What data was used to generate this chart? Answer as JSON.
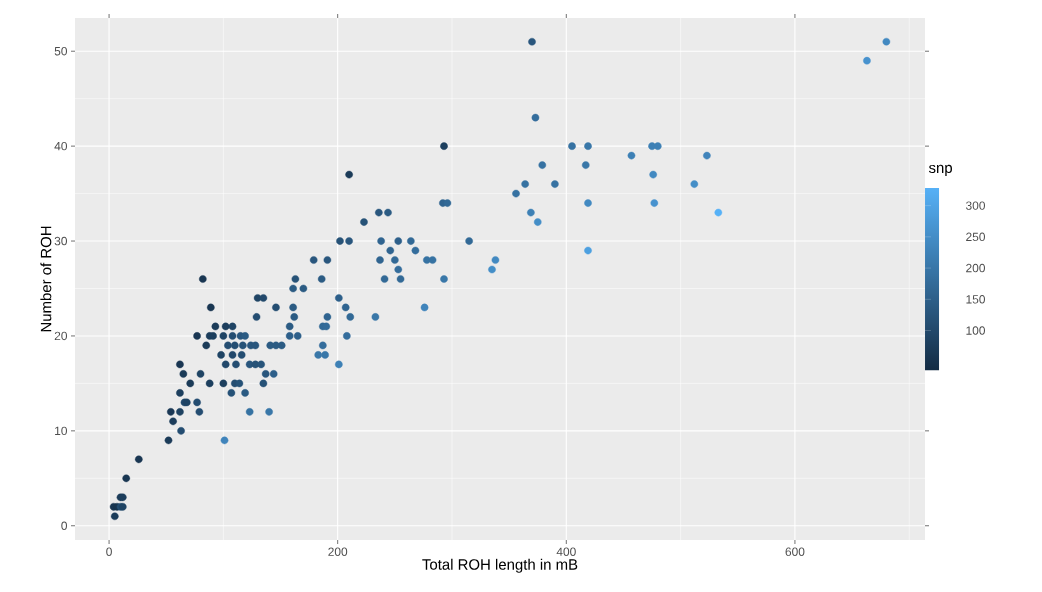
{
  "chart_data": {
    "type": "scatter",
    "xlabel": "Total ROH length in mB",
    "ylabel": "Number of ROH",
    "clabel": "snp",
    "x": [
      4,
      5,
      7,
      10,
      12,
      10,
      12,
      15,
      26,
      52,
      56,
      63,
      54,
      62,
      79,
      123,
      140,
      101,
      66,
      68,
      77,
      62,
      107,
      119,
      71,
      88,
      100,
      110,
      114,
      135,
      65,
      80,
      137,
      144,
      62,
      102,
      111,
      123,
      128,
      133,
      201,
      98,
      108,
      116,
      183,
      189,
      85,
      104,
      110,
      117,
      124,
      128,
      141,
      146,
      151,
      187,
      77,
      88,
      91,
      100,
      108,
      115,
      119,
      158,
      165,
      208,
      93,
      102,
      108,
      158,
      187,
      190,
      129,
      162,
      191,
      211,
      233,
      89,
      146,
      161,
      207,
      276,
      130,
      135,
      201,
      161,
      170,
      82,
      163,
      186,
      241,
      255,
      293,
      253,
      335,
      179,
      191,
      237,
      250,
      278,
      283,
      338,
      246,
      268,
      419,
      202,
      210,
      238,
      253,
      264,
      315,
      223,
      375,
      236,
      244,
      369,
      533,
      292,
      296,
      419,
      477,
      356,
      364,
      390,
      512,
      210,
      476,
      379,
      417,
      457,
      523,
      293,
      405,
      419,
      475,
      480,
      373,
      663,
      370,
      680
    ],
    "values": [
      2,
      1,
      2,
      2,
      2,
      3,
      3,
      5,
      7,
      9,
      11,
      10,
      12,
      12,
      12,
      12,
      12,
      9,
      13,
      13,
      13,
      14,
      14,
      14,
      15,
      15,
      15,
      15,
      15,
      15,
      16,
      16,
      16,
      16,
      17,
      17,
      17,
      17,
      17,
      17,
      17,
      18,
      18,
      18,
      18,
      18,
      19,
      19,
      19,
      19,
      19,
      19,
      19,
      19,
      19,
      19,
      20,
      20,
      20,
      20,
      20,
      20,
      20,
      20,
      20,
      20,
      21,
      21,
      21,
      21,
      21,
      21,
      22,
      22,
      22,
      22,
      22,
      23,
      23,
      23,
      23,
      23,
      24,
      24,
      24,
      25,
      25,
      26,
      26,
      26,
      26,
      26,
      26,
      27,
      27,
      28,
      28,
      28,
      28,
      28,
      28,
      28,
      29,
      29,
      29,
      30,
      30,
      30,
      30,
      30,
      30,
      32,
      32,
      33,
      33,
      33,
      33,
      34,
      34,
      34,
      34,
      35,
      36,
      36,
      36,
      37,
      37,
      38,
      38,
      39,
      39,
      40,
      40,
      40,
      40,
      40,
      43,
      49,
      51,
      51
    ],
    "cvalues": [
      60,
      70,
      55,
      110,
      90,
      70,
      75,
      60,
      60,
      70,
      75,
      110,
      65,
      85,
      110,
      190,
      200,
      230,
      100,
      90,
      110,
      80,
      120,
      140,
      70,
      80,
      80,
      110,
      120,
      120,
      70,
      90,
      130,
      150,
      60,
      100,
      110,
      130,
      120,
      125,
      220,
      90,
      100,
      110,
      200,
      200,
      70,
      110,
      110,
      120,
      130,
      130,
      140,
      140,
      140,
      180,
      60,
      75,
      80,
      90,
      110,
      130,
      140,
      150,
      150,
      180,
      70,
      80,
      90,
      140,
      170,
      175,
      110,
      140,
      160,
      170,
      200,
      60,
      110,
      140,
      160,
      230,
      90,
      100,
      150,
      140,
      140,
      60,
      120,
      140,
      170,
      170,
      200,
      180,
      250,
      130,
      130,
      160,
      170,
      190,
      190,
      240,
      160,
      180,
      290,
      120,
      130,
      160,
      150,
      170,
      170,
      120,
      250,
      130,
      140,
      220,
      329,
      160,
      170,
      240,
      260,
      190,
      190,
      190,
      250,
      70,
      240,
      190,
      200,
      220,
      230,
      80,
      190,
      200,
      220,
      220,
      180,
      260,
      130,
      240
    ],
    "marker": "circle",
    "grid": true,
    "xlim": [
      -29.8,
      713.8
    ],
    "ylim": [
      -1.5,
      53.5
    ],
    "xticks": [
      0,
      200,
      400,
      600
    ],
    "yticks": [
      0,
      10,
      20,
      30,
      40,
      50
    ],
    "clim": [
      36,
      329
    ],
    "cticks": [
      100,
      150,
      200,
      250,
      300
    ]
  }
}
